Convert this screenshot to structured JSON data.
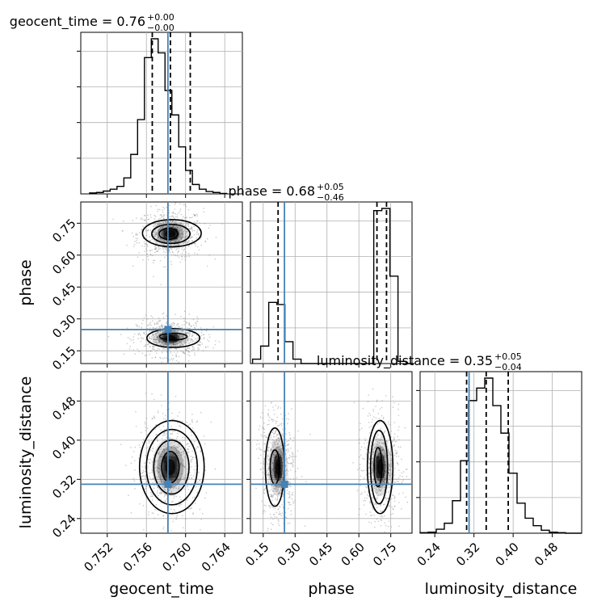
{
  "chart_data": {
    "type": "corner",
    "parameters": [
      "geocent_time",
      "phase",
      "luminosity_distance"
    ],
    "truth_values": {
      "geocent_time": 0.7582,
      "phase": 0.25,
      "luminosity_distance": 0.31
    },
    "colors": {
      "truth": "#4682b4",
      "hist": "#000000",
      "grid": "#b0b0b0",
      "scatter": "#888888",
      "background": "#ffffff"
    },
    "grid": true,
    "axes": {
      "geocent_time": {
        "label": "geocent_time",
        "range": [
          0.7493,
          0.7658
        ],
        "ticks": [
          0.752,
          0.756,
          0.76,
          0.764
        ],
        "tick_labels": [
          "0.752",
          "0.756",
          "0.760",
          "0.764"
        ]
      },
      "phase": {
        "label": "phase",
        "range": [
          0.09,
          0.85
        ],
        "ticks": [
          0.15,
          0.3,
          0.45,
          0.6,
          0.75
        ],
        "tick_labels": [
          "0.15",
          "0.30",
          "0.45",
          "0.60",
          "0.75"
        ]
      },
      "luminosity_distance": {
        "label": "luminosity_distance",
        "range": [
          0.21,
          0.54
        ],
        "ticks": [
          0.24,
          0.32,
          0.4,
          0.48
        ],
        "tick_labels": [
          "0.24",
          "0.32",
          "0.40",
          "0.48"
        ]
      }
    },
    "marginals": [
      {
        "parameter": "geocent_time",
        "title_value": "0.76",
        "title_plus": "+0.00",
        "title_minus": "−0.00",
        "quantiles": [
          0.7566,
          0.75845,
          0.76048
        ],
        "bin_edges": [
          0.7502,
          0.7509,
          0.7516,
          0.7523,
          0.753,
          0.7537,
          0.7544,
          0.7551,
          0.7558,
          0.7565,
          0.7572,
          0.7579,
          0.7586,
          0.7593,
          0.76,
          0.7607,
          0.7614,
          0.7621,
          0.7628,
          0.7635,
          0.7642
        ],
        "counts": [
          2,
          3,
          6,
          10,
          16,
          34,
          84,
          158,
          290,
          330,
          300,
          220,
          168,
          100,
          50,
          20,
          10,
          5,
          3,
          1
        ]
      },
      {
        "parameter": "phase",
        "title_value": "0.68",
        "title_plus": "+0.05",
        "title_minus": "−0.46",
        "quantiles": [
          0.22,
          0.685,
          0.73
        ],
        "bin_edges": [
          0.1,
          0.138,
          0.176,
          0.214,
          0.252,
          0.29,
          0.328,
          0.366,
          0.404,
          0.442,
          0.48,
          0.518,
          0.556,
          0.594,
          0.632,
          0.67,
          0.708,
          0.746,
          0.784,
          0.822,
          0.86
        ],
        "counts": [
          10,
          40,
          140,
          135,
          50,
          10,
          0,
          0,
          0,
          0,
          0,
          0,
          0,
          0,
          0,
          350,
          355,
          200,
          5,
          0
        ]
      },
      {
        "parameter": "luminosity_distance",
        "title_value": "0.35",
        "title_plus": "+0.05",
        "title_minus": "−0.04",
        "quantiles": [
          0.305,
          0.345,
          0.39
        ],
        "bin_edges": [
          0.21,
          0.2265,
          0.243,
          0.2595,
          0.276,
          0.2925,
          0.309,
          0.3255,
          0.342,
          0.3585,
          0.375,
          0.3915,
          0.408,
          0.4245,
          0.441,
          0.4575,
          0.474,
          0.4905,
          0.507,
          0.5235,
          0.54
        ],
        "counts": [
          1,
          2,
          8,
          20,
          65,
          145,
          265,
          290,
          310,
          255,
          200,
          120,
          60,
          30,
          15,
          6,
          2,
          1,
          0,
          0
        ]
      }
    ],
    "joint": [
      {
        "x": "geocent_time",
        "y": "phase",
        "modes": [
          {
            "cx": 0.75845,
            "cy": 0.7,
            "sx": 0.00105,
            "sy": 0.037
          },
          {
            "cx": 0.75845,
            "cy": 0.21,
            "sx": 0.00105,
            "sy": 0.027
          }
        ],
        "contours": [
          {
            "cx": 0.75825,
            "cy": 0.7,
            "rx": 0.00095,
            "ry": 0.026
          },
          {
            "cx": 0.7585,
            "cy": 0.7,
            "rx": 0.00195,
            "ry": 0.045
          },
          {
            "cx": 0.7586,
            "cy": 0.703,
            "rx": 0.003,
            "ry": 0.064
          },
          {
            "cx": 0.75875,
            "cy": 0.217,
            "rx": 0.0014,
            "ry": 0.016
          },
          {
            "cx": 0.75875,
            "cy": 0.21,
            "rx": 0.0027,
            "ry": 0.044
          }
        ]
      },
      {
        "x": "geocent_time",
        "y": "luminosity_distance",
        "modes": [
          {
            "cx": 0.75845,
            "cy": 0.345,
            "sx": 0.00105,
            "sy": 0.033
          }
        ],
        "contours": [
          {
            "cx": 0.75845,
            "cy": 0.345,
            "rx": 0.0009,
            "ry": 0.032
          },
          {
            "cx": 0.75855,
            "cy": 0.345,
            "rx": 0.0018,
            "ry": 0.055
          },
          {
            "cx": 0.7586,
            "cy": 0.345,
            "rx": 0.0026,
            "ry": 0.077
          },
          {
            "cx": 0.7586,
            "cy": 0.345,
            "rx": 0.0033,
            "ry": 0.095
          }
        ]
      },
      {
        "x": "phase",
        "y": "luminosity_distance",
        "modes": [
          {
            "cx": 0.22,
            "cy": 0.345,
            "sx": 0.025,
            "sy": 0.033
          },
          {
            "cx": 0.7,
            "cy": 0.345,
            "sx": 0.028,
            "sy": 0.033
          }
        ],
        "contours": [
          {
            "cx": 0.205,
            "cy": 0.345,
            "rx": 0.022,
            "ry": 0.035
          },
          {
            "cx": 0.205,
            "cy": 0.345,
            "rx": 0.045,
            "ry": 0.08
          },
          {
            "cx": 0.69,
            "cy": 0.345,
            "rx": 0.018,
            "ry": 0.04
          },
          {
            "cx": 0.695,
            "cy": 0.345,
            "rx": 0.04,
            "ry": 0.075
          },
          {
            "cx": 0.7,
            "cy": 0.345,
            "rx": 0.06,
            "ry": 0.095
          }
        ]
      }
    ]
  }
}
